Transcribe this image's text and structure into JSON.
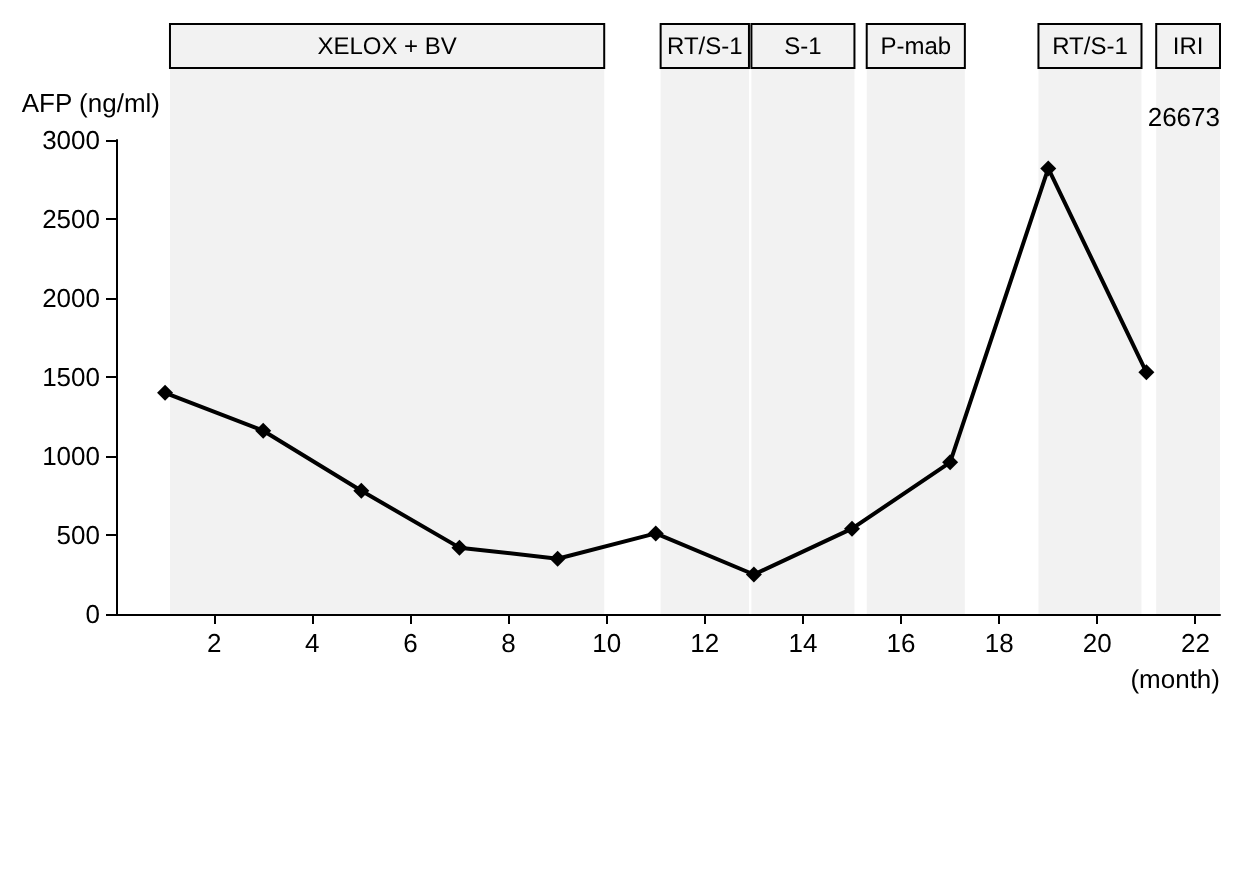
{
  "chart_data": {
    "type": "line",
    "ylabel": "AFP (ng/ml)",
    "xlabel": "(month)",
    "x": [
      1,
      3,
      5,
      7,
      9,
      11,
      13,
      15,
      17,
      19,
      21
    ],
    "values": [
      1400,
      1160,
      780,
      420,
      350,
      510,
      250,
      540,
      960,
      2820,
      1530
    ],
    "color": "#000000",
    "marker": "diamond",
    "line_style": "solid",
    "grid": false,
    "xlim": [
      0,
      22.5
    ],
    "xticks": [
      2,
      4,
      6,
      8,
      10,
      12,
      14,
      16,
      18,
      20,
      22
    ],
    "ylim": [
      0,
      3000
    ],
    "yticks": [
      0,
      500,
      1000,
      1500,
      2000,
      2500,
      3000
    ],
    "bands": [
      {
        "axis": "x",
        "from": 1.1,
        "to": 9.95,
        "label": "XELOX + BV"
      },
      {
        "axis": "x",
        "from": 11.1,
        "to": 12.9,
        "label": "RT/S-1"
      },
      {
        "axis": "x",
        "from": 12.95,
        "to": 15.05,
        "label": "S-1"
      },
      {
        "axis": "x",
        "from": 15.3,
        "to": 17.3,
        "label": "P-mab"
      },
      {
        "axis": "x",
        "from": 18.8,
        "to": 20.9,
        "label": "RT/S-1"
      },
      {
        "axis": "x",
        "from": 21.2,
        "to": 22.5,
        "label": "IRI"
      }
    ],
    "annotations": [
      "26673"
    ]
  }
}
